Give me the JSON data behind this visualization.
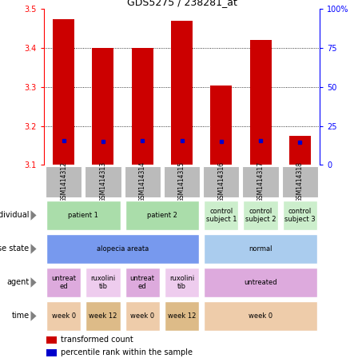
{
  "title": "GDS5275 / 238281_at",
  "samples": [
    "GSM1414312",
    "GSM1414313",
    "GSM1414314",
    "GSM1414315",
    "GSM1414316",
    "GSM1414317",
    "GSM1414318"
  ],
  "transformed_count": [
    3.475,
    3.4,
    3.4,
    3.47,
    3.305,
    3.42,
    3.175
  ],
  "percentile_rank": [
    15.5,
    15.0,
    15.5,
    15.5,
    15.0,
    15.5,
    14.5
  ],
  "bar_bottom": 3.1,
  "ylim": [
    3.1,
    3.5
  ],
  "yticks_left": [
    3.1,
    3.2,
    3.3,
    3.4,
    3.5
  ],
  "yticks_right": [
    0,
    25,
    50,
    75,
    100
  ],
  "bar_color": "#cc0000",
  "percentile_color": "#0000cc",
  "sample_label_bg": "#bbbbbb",
  "individual_row": {
    "label": "individual",
    "cells": [
      {
        "text": "patient 1",
        "span": 2,
        "color": "#aaddaa"
      },
      {
        "text": "patient 2",
        "span": 2,
        "color": "#aaddaa"
      },
      {
        "text": "control\nsubject 1",
        "span": 1,
        "color": "#cceecc"
      },
      {
        "text": "control\nsubject 2",
        "span": 1,
        "color": "#cceecc"
      },
      {
        "text": "control\nsubject 3",
        "span": 1,
        "color": "#cceecc"
      }
    ]
  },
  "disease_row": {
    "label": "disease state",
    "cells": [
      {
        "text": "alopecia areata",
        "span": 4,
        "color": "#7799ee"
      },
      {
        "text": "normal",
        "span": 3,
        "color": "#aaccee"
      }
    ]
  },
  "agent_row": {
    "label": "agent",
    "cells": [
      {
        "text": "untreat\ned",
        "span": 1,
        "color": "#ddaadd"
      },
      {
        "text": "ruxolini\ntib",
        "span": 1,
        "color": "#eeccee"
      },
      {
        "text": "untreat\ned",
        "span": 1,
        "color": "#ddaadd"
      },
      {
        "text": "ruxolini\ntib",
        "span": 1,
        "color": "#eeccee"
      },
      {
        "text": "untreated",
        "span": 3,
        "color": "#ddaadd"
      }
    ]
  },
  "time_row": {
    "label": "time",
    "cells": [
      {
        "text": "week 0",
        "span": 1,
        "color": "#eeccaa"
      },
      {
        "text": "week 12",
        "span": 1,
        "color": "#ddbb88"
      },
      {
        "text": "week 0",
        "span": 1,
        "color": "#eeccaa"
      },
      {
        "text": "week 12",
        "span": 1,
        "color": "#ddbb88"
      },
      {
        "text": "week 0",
        "span": 3,
        "color": "#eeccaa"
      }
    ]
  },
  "legend": [
    {
      "color": "#cc0000",
      "label": "transformed count"
    },
    {
      "color": "#0000cc",
      "label": "percentile rank within the sample"
    }
  ]
}
